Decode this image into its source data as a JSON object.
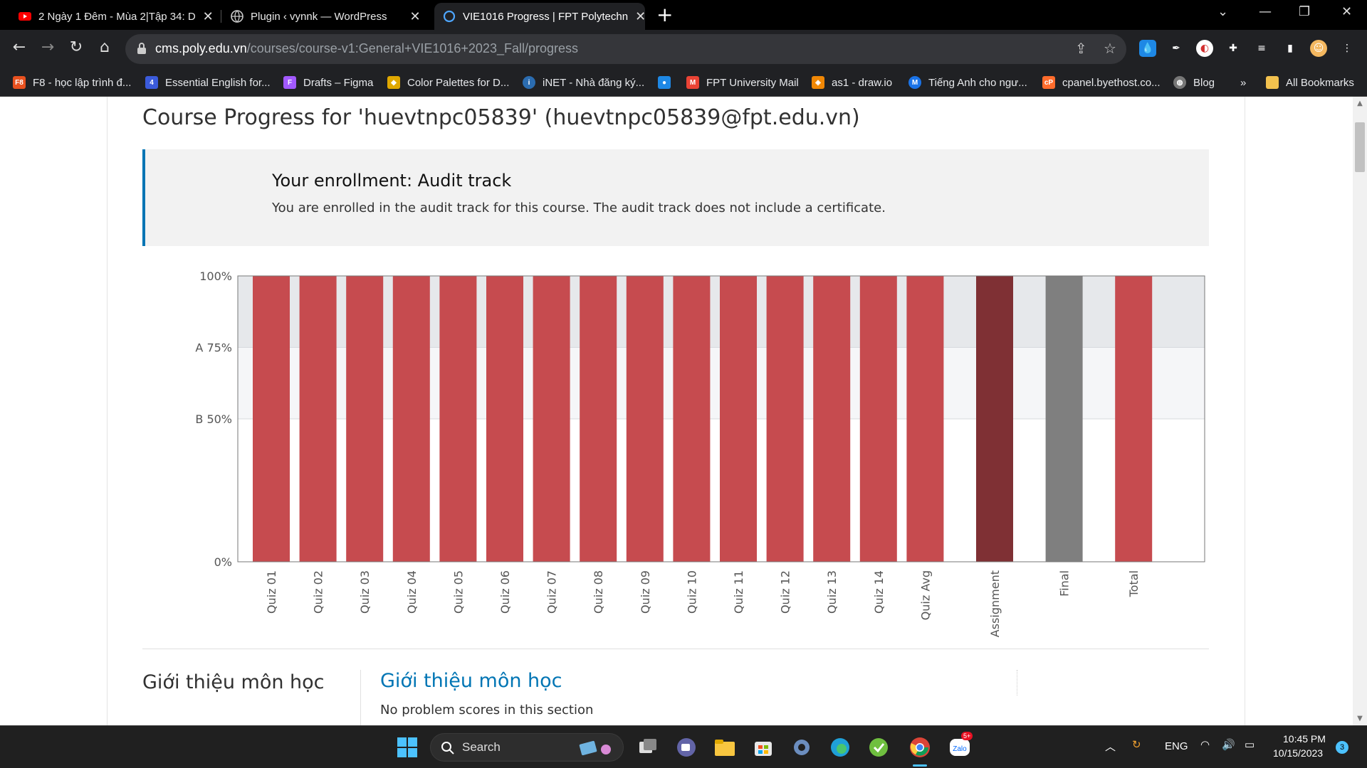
{
  "browser": {
    "tabs": [
      {
        "title": "2 Ngày 1 Đêm - Mùa 2|Tập 34: D",
        "active": false
      },
      {
        "title": "Plugin ‹ vynnk — WordPress",
        "active": false
      },
      {
        "title": "VIE1016 Progress | FPT Polytechn",
        "active": true
      }
    ],
    "url_host": "cms.poly.edu.vn",
    "url_path": "/courses/course-v1:General+VIE1016+2023_Fall/progress",
    "bookmarks": [
      {
        "label": "F8 - học lập trình đ...",
        "icon": "f8-icon",
        "color": "#e8511f"
      },
      {
        "label": "Essential English for...",
        "icon": "essential-english-icon",
        "color": "#3b5bdb"
      },
      {
        "label": "Drafts – Figma",
        "icon": "figma-icon",
        "color": "#a259ff"
      },
      {
        "label": "Color Palettes for D...",
        "icon": "color-palettes-icon",
        "color": "#e0a800"
      },
      {
        "label": "iNET - Nhà đăng ký...",
        "icon": "inet-icon",
        "color": "#2b6cb0"
      },
      {
        "label": "",
        "icon": "water-drop-icon",
        "color": "#1e88e5"
      },
      {
        "label": "FPT University Mail",
        "icon": "gmail-icon",
        "color": "#ea4335"
      },
      {
        "label": "as1 - draw.io",
        "icon": "drawio-icon",
        "color": "#f08705"
      },
      {
        "label": "Tiếng Anh cho ngư...",
        "icon": "m-icon",
        "color": "#1a73e8"
      },
      {
        "label": "cpanel.byethost.co...",
        "icon": "cpanel-icon",
        "color": "#ff6c2c"
      },
      {
        "label": "Blog",
        "icon": "globe-icon",
        "color": "#777777"
      }
    ],
    "bookmarks_overflow": "»",
    "all_bookmarks": "All Bookmarks"
  },
  "page": {
    "title": "Course Progress for 'huevtnpc05839' (huevtnpc05839@fpt.edu.vn)",
    "enrollment_heading": "Your enrollment: Audit track",
    "enrollment_text": "You are enrolled in the audit track for this course. The audit track does not include a certificate.",
    "section_left": "Giới thiệu môn học",
    "section_link": "Giới thiệu môn học",
    "section_note": "No problem scores in this section"
  },
  "chart_data": {
    "type": "bar",
    "y_ticks": [
      {
        "value": 100,
        "label": "100%"
      },
      {
        "value": 75,
        "label": "A 75%"
      },
      {
        "value": 50,
        "label": "B 50%"
      },
      {
        "value": 0,
        "label": "0%"
      }
    ],
    "ylim": [
      0,
      100
    ],
    "bands": [
      {
        "from": 75,
        "to": 100,
        "color": "#e6e8eb"
      },
      {
        "from": 50,
        "to": 75,
        "color": "#f5f6f8"
      }
    ],
    "categories": [
      "Quiz 01",
      "Quiz 02",
      "Quiz 03",
      "Quiz 04",
      "Quiz 05",
      "Quiz 06",
      "Quiz 07",
      "Quiz 08",
      "Quiz 09",
      "Quiz 10",
      "Quiz 11",
      "Quiz 12",
      "Quiz 13",
      "Quiz 14",
      "Quiz Avg",
      "Assignment",
      "Final",
      "Total"
    ],
    "values": [
      100,
      100,
      100,
      100,
      100,
      100,
      100,
      100,
      100,
      100,
      100,
      100,
      100,
      100,
      100,
      100,
      100,
      100
    ],
    "colors": [
      "#c64b4f",
      "#c64b4f",
      "#c64b4f",
      "#c64b4f",
      "#c64b4f",
      "#c64b4f",
      "#c64b4f",
      "#c64b4f",
      "#c64b4f",
      "#c64b4f",
      "#c64b4f",
      "#c64b4f",
      "#c64b4f",
      "#c64b4f",
      "#c64b4f",
      "#7f3034",
      "#7f7f7f",
      "#c64b4f"
    ]
  },
  "taskbar": {
    "search_label": "Search",
    "language": "ENG",
    "time": "10:45 PM",
    "date": "10/15/2023",
    "zalo_badge": "5+",
    "notification_count": "3"
  }
}
